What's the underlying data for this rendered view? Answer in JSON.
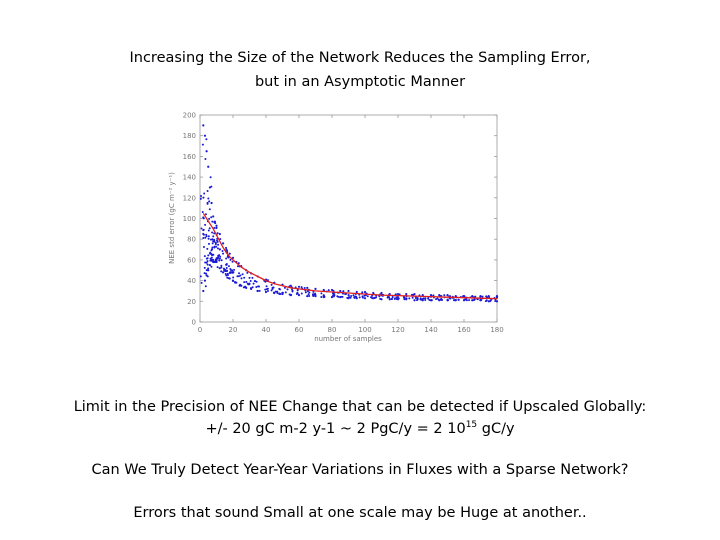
{
  "slide": {
    "title_line1": "Increasing the Size of the Network Reduces the Sampling Error,",
    "title_line2": "but in an Asymptotic Manner",
    "text1": "Limit in the Precision of NEE Change that can be detected if Upscaled Globally:",
    "text2_pre": "+/- 20 gC m-2 y-1 ~ 2 PgC/y = 2 10",
    "text2_exp": "15",
    "text2_post": " gC/y",
    "text3": "Can We Truly Detect Year-Year Variations in Fluxes with a Sparse Network?",
    "text4": "Errors that sound Small at one scale  may be Huge at another.."
  },
  "chart_data": {
    "type": "scatter",
    "xlabel": "number of samples",
    "ylabel": "NEE std error (gC m⁻² y⁻¹)",
    "xlim": [
      0,
      180
    ],
    "ylim": [
      0,
      200
    ],
    "xticks": [
      0,
      20,
      40,
      60,
      80,
      100,
      120,
      140,
      160,
      180
    ],
    "yticks": [
      0,
      20,
      40,
      60,
      80,
      100,
      120,
      140,
      160,
      180,
      200
    ],
    "grid": false,
    "series": [
      {
        "style": "blue dots (bootstrap samples)",
        "color": "#1a1ad6",
        "x": [
          2,
          2,
          3,
          3,
          4,
          4,
          5,
          5,
          6,
          6,
          7,
          7,
          8,
          8,
          9,
          9,
          10,
          10,
          12,
          12,
          14,
          14,
          16,
          16,
          18,
          18,
          20,
          20,
          22,
          22,
          25,
          25,
          28,
          28,
          31,
          31,
          35,
          35,
          40,
          40,
          45,
          45,
          50,
          50,
          55,
          55,
          60,
          60,
          65,
          65,
          70,
          70,
          75,
          75,
          80,
          80,
          85,
          85,
          90,
          90,
          95,
          95,
          100,
          100,
          105,
          105,
          110,
          110,
          115,
          115,
          120,
          120,
          125,
          125,
          130,
          130,
          135,
          135,
          140,
          140,
          145,
          145,
          150,
          150,
          155,
          155,
          160,
          160,
          165,
          165,
          170,
          170,
          175,
          175,
          180,
          180
        ],
        "y": [
          30,
          190,
          40,
          180,
          45,
          165,
          50,
          150,
          55,
          130,
          60,
          115,
          58,
          102,
          58,
          97,
          58,
          93,
          52,
          85,
          48,
          76,
          45,
          70,
          42,
          66,
          40,
          62,
          38,
          58,
          35,
          54,
          33,
          50,
          32,
          47,
          30,
          44,
          29,
          41,
          28,
          38,
          27,
          36,
          26,
          35,
          26,
          34,
          25,
          33,
          25,
          32,
          24,
          31,
          24,
          31,
          24,
          30,
          23,
          30,
          23,
          29,
          23,
          29,
          23,
          28,
          22,
          28,
          22,
          27,
          22,
          27,
          22,
          27,
          21,
          27,
          21,
          26,
          21,
          26,
          21,
          26,
          21,
          26,
          21,
          25,
          21,
          25,
          21,
          25,
          21,
          25,
          20,
          25,
          20,
          25
        ]
      },
      {
        "style": "red mean line",
        "color": "#e02020",
        "x": [
          2,
          4,
          6,
          8,
          10,
          12,
          14,
          16,
          18,
          20,
          25,
          30,
          35,
          40,
          45,
          50,
          55,
          60,
          70,
          80,
          90,
          100,
          110,
          120,
          130,
          140,
          150,
          160,
          170,
          180
        ],
        "y": [
          105,
          100,
          95,
          90,
          84,
          78,
          72,
          67,
          63,
          60,
          53,
          48,
          44,
          40,
          37,
          35,
          33,
          32,
          30,
          29,
          28,
          27,
          26,
          25.5,
          25,
          24.5,
          24,
          23.5,
          23,
          22.5
        ]
      }
    ]
  }
}
